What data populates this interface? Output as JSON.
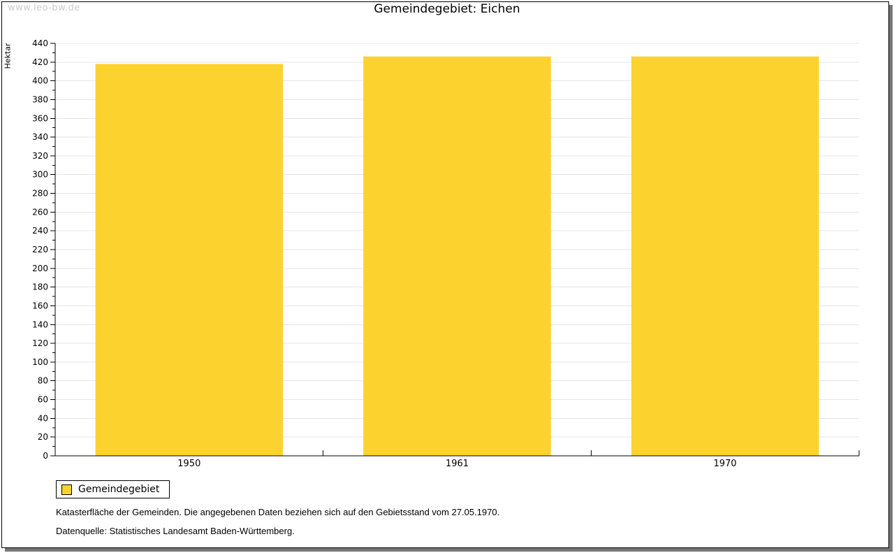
{
  "watermark": "www.leo-bw.de",
  "title": "Gemeindegebiet: Eichen",
  "legend": {
    "label": "Gemeindegebiet"
  },
  "footnotes": {
    "line1": "Katasterfläche der Gemeinden. Die angegebenen Daten beziehen sich auf den Gebietsstand vom 27.05.1970.",
    "line2": "Datenquelle: Statistisches Landesamt Baden-Württemberg."
  },
  "colors": {
    "bar_fill": "#FCD32E",
    "gridline": "#e5e5e5",
    "axis": "#000000",
    "watermark": "#cbcbcb",
    "frame_shadow": "#777777"
  },
  "chart_data": {
    "type": "bar",
    "title": "Gemeindegebiet: Eichen",
    "xlabel": "",
    "ylabel": "Hektar",
    "categories": [
      "1950",
      "1961",
      "1970"
    ],
    "series": [
      {
        "name": "Gemeindegebiet",
        "color": "#FCD32E",
        "values": [
          418,
          426,
          426
        ]
      }
    ],
    "ylim": [
      0,
      440
    ],
    "ytick_major": 20,
    "ytick_minor": 10,
    "grid": true,
    "legend_position": "bottom-left",
    "annotations": []
  }
}
